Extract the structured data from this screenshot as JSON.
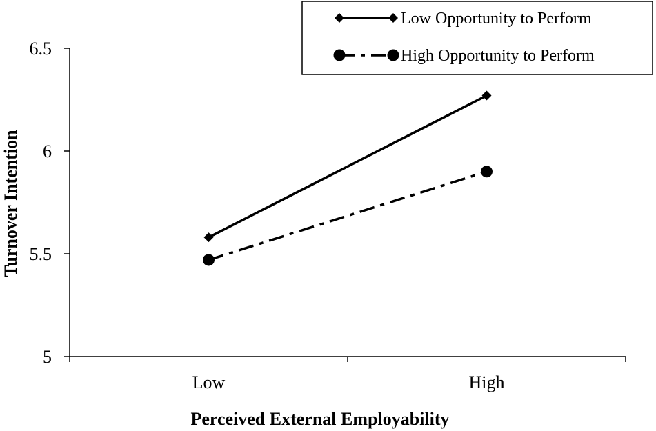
{
  "chart_data": {
    "type": "line",
    "title": "",
    "xlabel": "Perceived External Employability",
    "ylabel": "Turnover Intention",
    "categories": [
      "Low",
      "High"
    ],
    "ylim": [
      5,
      6.5
    ],
    "yticks": [
      "5",
      "5.5",
      "6",
      "6.5"
    ],
    "grid": false,
    "legend_position": "top-right",
    "series": [
      {
        "name": "Low Opportunity to Perform",
        "values": [
          5.58,
          6.27
        ],
        "line_style": "solid",
        "marker": "diamond",
        "color": "#000000"
      },
      {
        "name": "High Opportunity to Perform",
        "values": [
          5.47,
          5.9
        ],
        "line_style": "dashdot",
        "marker": "circle",
        "color": "#000000"
      }
    ]
  }
}
